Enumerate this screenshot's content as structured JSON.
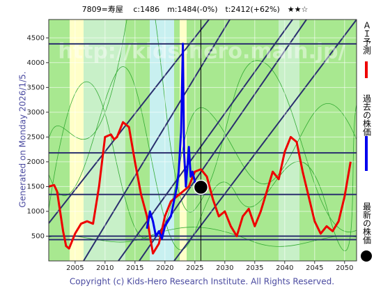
{
  "chart_data": {
    "type": "line",
    "title": "7809=寿屋　 c:1486　m:1484(-0%)　t:2412(+62%)　★★☆",
    "side_label": "Generated on Monday 2026/1/5.",
    "footer": "Copyright (c) Kids-Hero Research Institute. All Rights Reserved.",
    "watermark": "http://kids-hero.main.jp/",
    "xlim": [
      2000.6,
      2052
    ],
    "ylim": [
      0,
      4870
    ],
    "xticks": [
      2005,
      2010,
      2015,
      2020,
      2025,
      2030,
      2035,
      2040,
      2045,
      2050
    ],
    "yticks": [
      500,
      1000,
      1500,
      2000,
      2500,
      3000,
      3500,
      4000,
      4500
    ],
    "levels": [
      4380,
      2180,
      1340,
      500,
      430
    ],
    "current_x": 2026,
    "series": [
      {
        "name": "ＡＩ予測",
        "color": "#ee0000",
        "x": [
          2000.6,
          2001.5,
          2002,
          2003,
          2003.5,
          2004,
          2005,
          2006,
          2007,
          2008,
          2009,
          2010,
          2011,
          2011.5,
          2012,
          2013,
          2014,
          2015,
          2016,
          2017,
          2017.5,
          2018,
          2019,
          2020,
          2021,
          2022,
          2023,
          2024,
          2025,
          2026,
          2027,
          2028,
          2029,
          2030,
          2031,
          2032,
          2033,
          2034,
          2035,
          2036,
          2037,
          2038,
          2039,
          2040,
          2041,
          2042,
          2043,
          2044,
          2045,
          2046,
          2047,
          2048,
          2049,
          2050,
          2051
        ],
        "values": [
          1500,
          1530,
          1400,
          600,
          300,
          250,
          550,
          750,
          800,
          750,
          1500,
          2500,
          2550,
          2450,
          2500,
          2800,
          2700,
          2000,
          1350,
          900,
          500,
          150,
          350,
          900,
          1200,
          1300,
          1400,
          1500,
          1800,
          1850,
          1700,
          1250,
          900,
          1000,
          700,
          500,
          900,
          1050,
          700,
          1000,
          1400,
          1800,
          1650,
          2200,
          2500,
          2400,
          1800,
          1300,
          800,
          550,
          700,
          600,
          800,
          1300,
          2000
        ]
      },
      {
        "name": "過去の株価",
        "color": "#0000ee",
        "x": [
          2017,
          2017.5,
          2018,
          2018.5,
          2019,
          2019.5,
          2020,
          2020.5,
          2021,
          2021.5,
          2022,
          2022.3,
          2022.7,
          2023,
          2023.2,
          2023.5,
          2024,
          2024.3,
          2024.6,
          2025,
          2025.5,
          2026
        ],
        "values": [
          650,
          1000,
          800,
          500,
          600,
          450,
          700,
          800,
          900,
          1200,
          1500,
          1800,
          2600,
          4380,
          2200,
          1500,
          2300,
          1700,
          1800,
          1600,
          1400,
          1486
        ]
      },
      {
        "name": "最新の株価",
        "color": "#000000",
        "x": [
          2026
        ],
        "values": [
          1486
        ]
      }
    ]
  }
}
